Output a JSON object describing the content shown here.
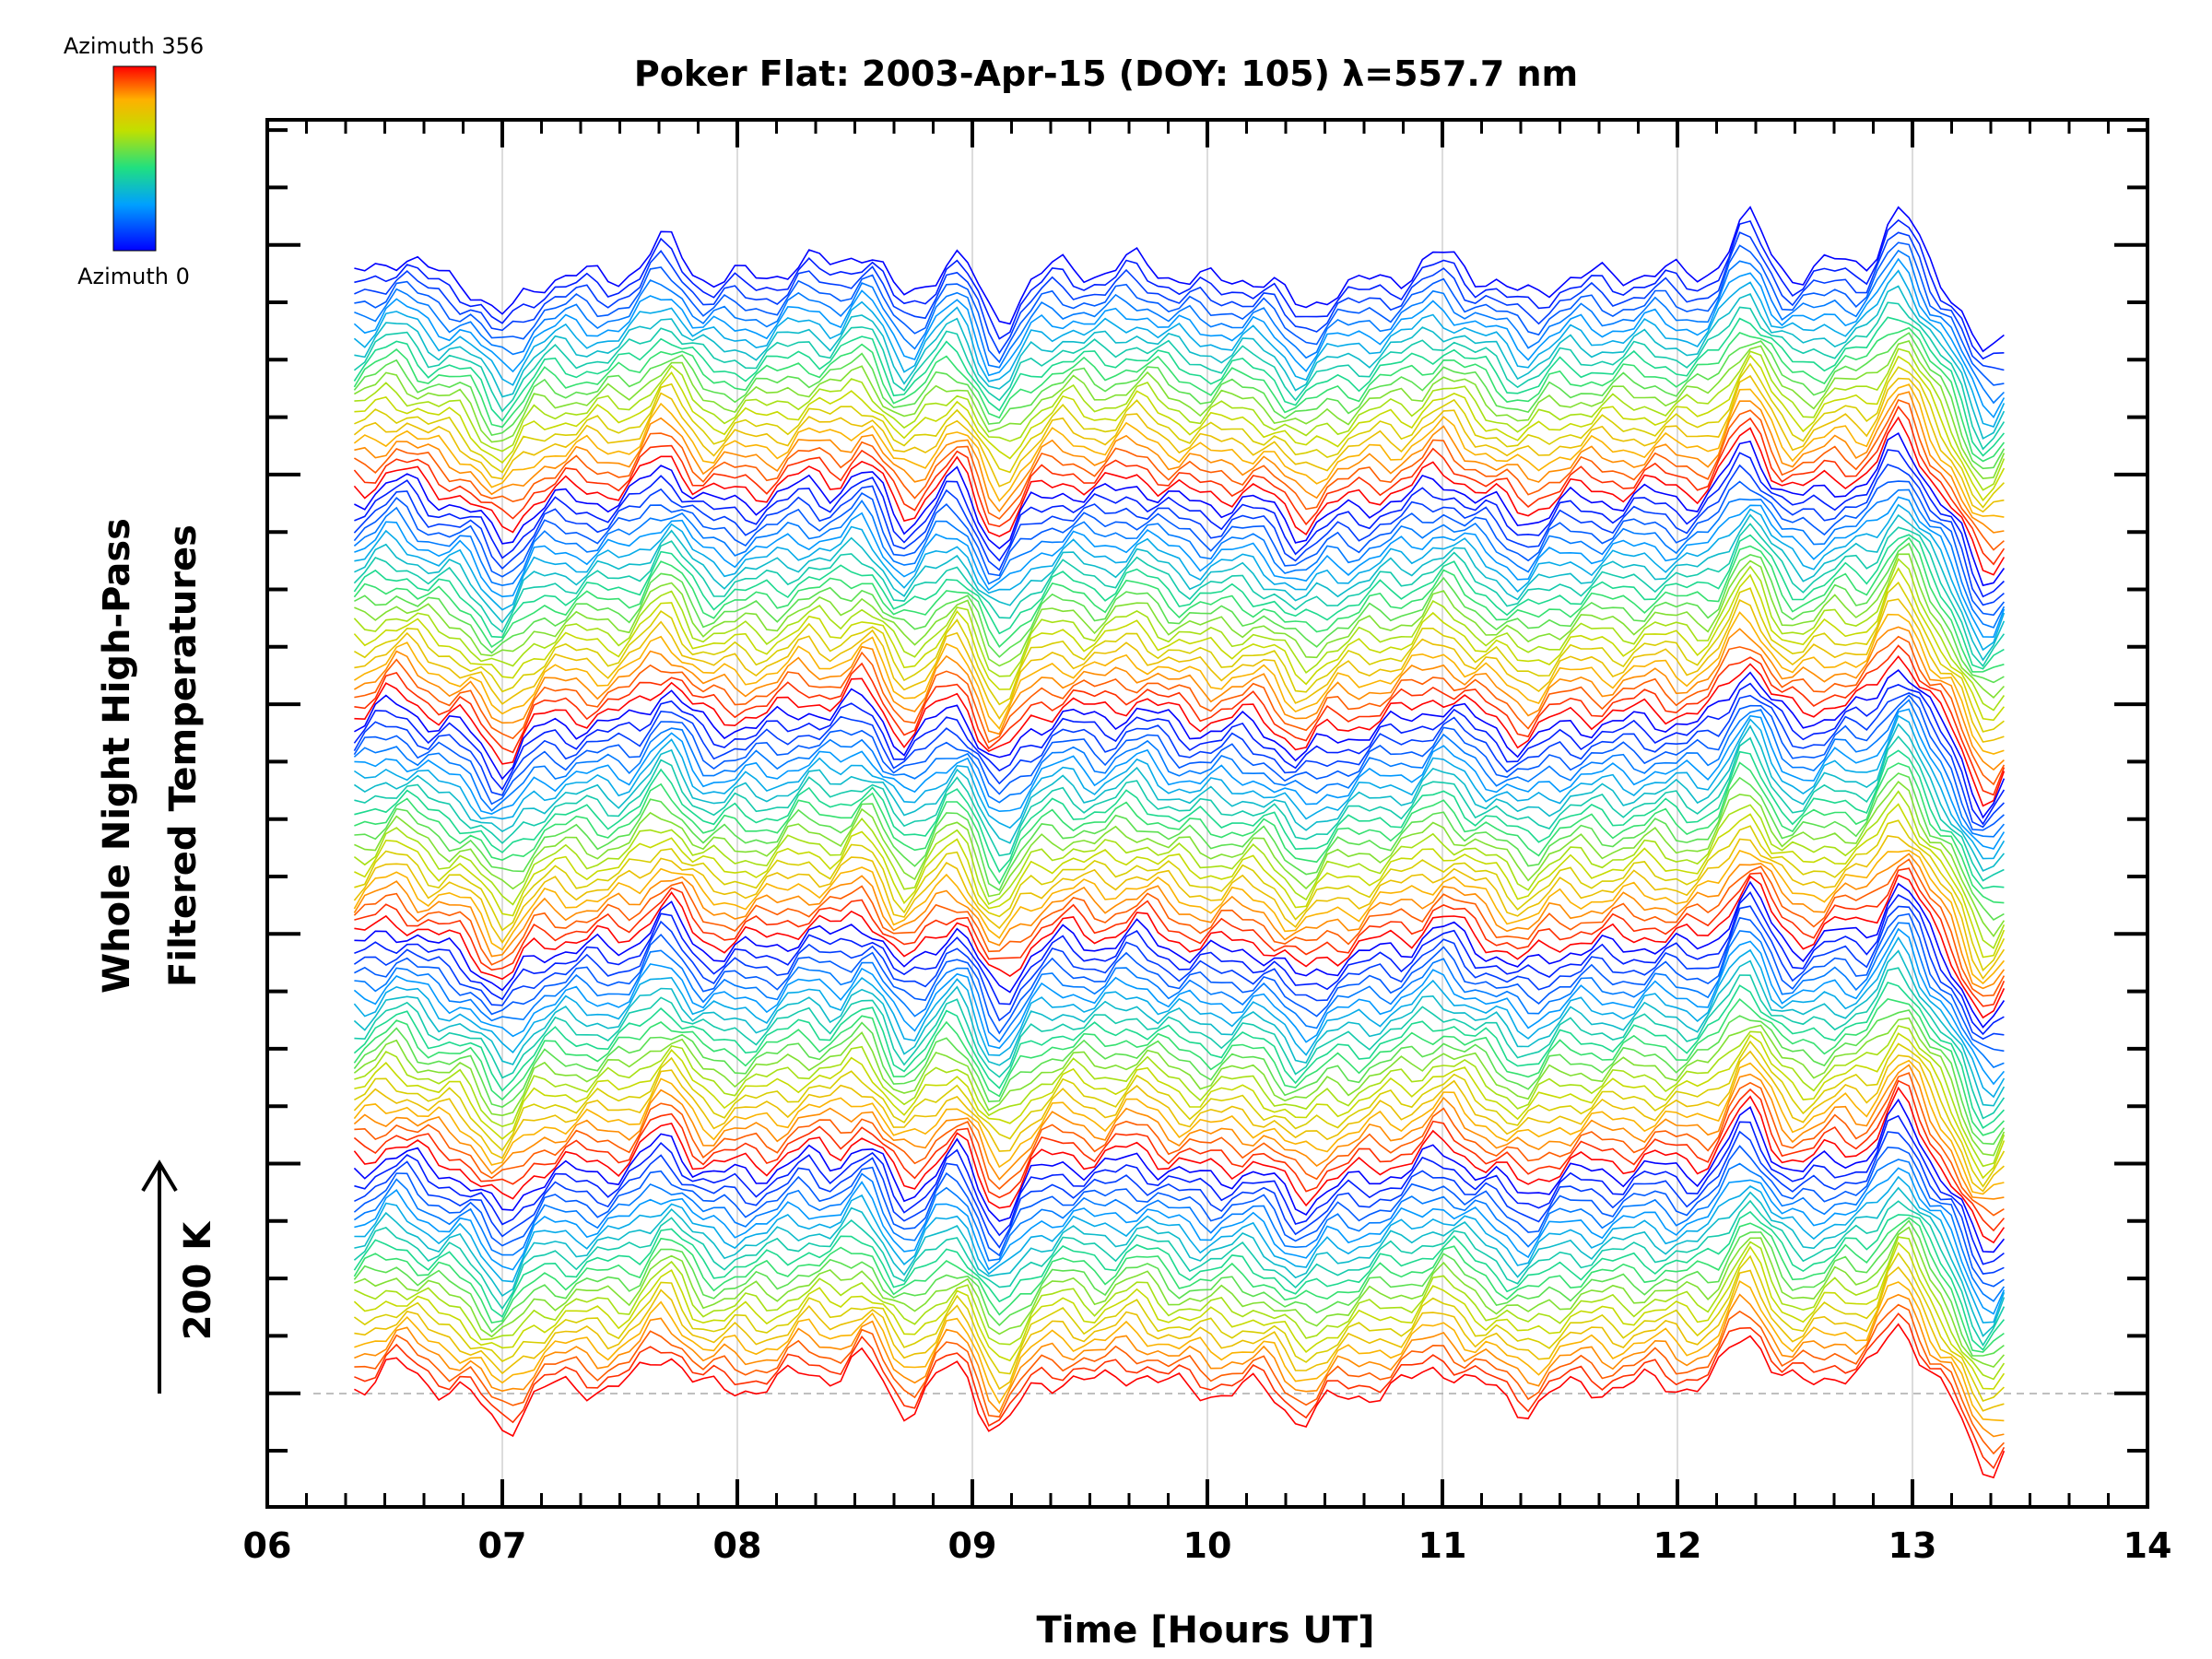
{
  "chart_data": {
    "type": "line",
    "title": "Poker Flat: 2003-Apr-15 (DOY: 105) λ=557.7 nm",
    "xlabel": "Time [Hours UT]",
    "ylabel_line1": "Whole Night High-Pass",
    "ylabel_line2": "Filtered Temperatures",
    "scale_bar_label": "200 K",
    "colorbar": {
      "top_label": "Azimuth 356",
      "bottom_label": "Azimuth 0",
      "min": 0,
      "max": 356
    },
    "xlim": [
      6,
      14
    ],
    "x_ticks": [
      "06",
      "07",
      "08",
      "09",
      "10",
      "11",
      "12",
      "13",
      "14"
    ],
    "x_tick_values": [
      6,
      7,
      8,
      9,
      10,
      11,
      12,
      13,
      14
    ],
    "data_time_range": [
      6.37,
      13.43
    ],
    "grid": true,
    "stacked_offset_traces": true,
    "color_scale": "azimuth (rainbow, blue=0 to red=356)",
    "azimuth_cycles": 5,
    "traces_per_cycle": 22,
    "common_features": [
      {
        "time": 6.55,
        "dT": 40
      },
      {
        "time": 7.0,
        "dT": -80
      },
      {
        "time": 7.3,
        "dT": 0
      },
      {
        "time": 7.7,
        "dT": 70
      },
      {
        "time": 7.85,
        "dT": -10
      },
      {
        "time": 8.3,
        "dT": 30
      },
      {
        "time": 8.55,
        "dT": 60
      },
      {
        "time": 8.7,
        "dT": -50
      },
      {
        "time": 8.95,
        "dT": 50
      },
      {
        "time": 9.1,
        "dT": -90
      },
      {
        "time": 9.4,
        "dT": 20
      },
      {
        "time": 9.7,
        "dT": 30
      },
      {
        "time": 10.0,
        "dT": -10
      },
      {
        "time": 10.4,
        "dT": -60
      },
      {
        "time": 10.6,
        "dT": -20
      },
      {
        "time": 11.0,
        "dT": 40
      },
      {
        "time": 11.35,
        "dT": -40
      },
      {
        "time": 11.9,
        "dT": 10
      },
      {
        "time": 12.3,
        "dT": 110
      },
      {
        "time": 12.7,
        "dT": 30
      },
      {
        "time": 12.95,
        "dT": 120
      },
      {
        "time": 13.3,
        "dT": -140
      },
      {
        "time": 13.43,
        "dT": -60
      }
    ]
  }
}
